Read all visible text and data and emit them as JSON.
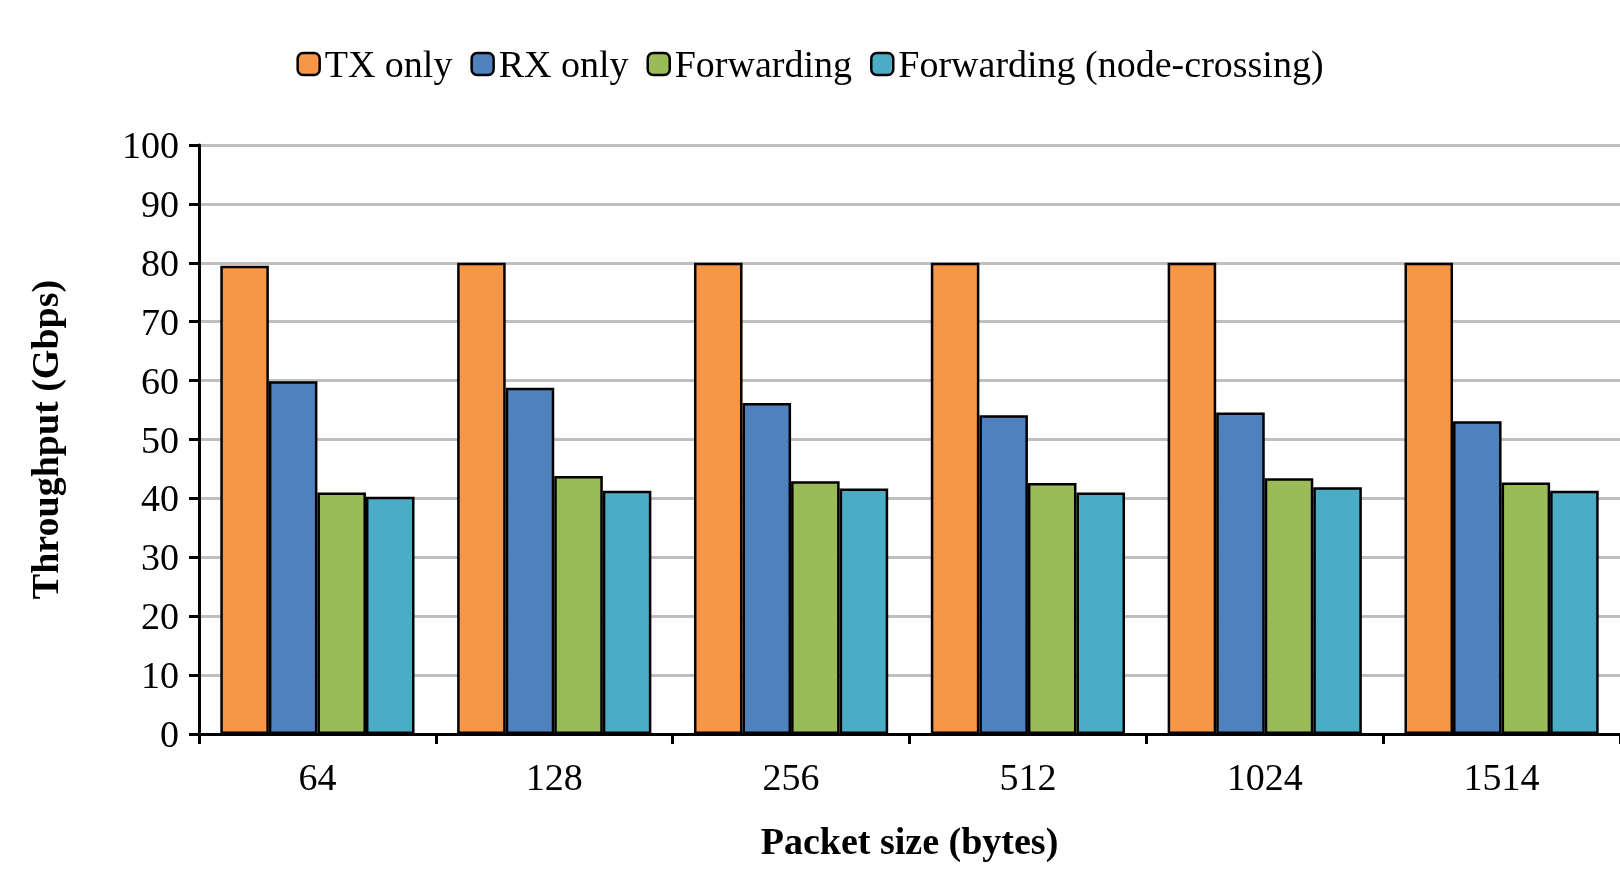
{
  "chart_data": {
    "type": "bar",
    "xlabel": "Packet size (bytes)",
    "ylabel": "Throughput (Gbps)",
    "categories": [
      "64",
      "128",
      "256",
      "512",
      "1024",
      "1514"
    ],
    "series": [
      {
        "name": "TX only",
        "color": "#f79646",
        "values": [
          79.5,
          80,
          80,
          80,
          80,
          80
        ]
      },
      {
        "name": "RX only",
        "color": "#4f81bd",
        "values": [
          59.9,
          58.8,
          56.2,
          54.1,
          54.6,
          53.1
        ]
      },
      {
        "name": "Forwarding",
        "color": "#9bbb59",
        "values": [
          41.0,
          43.8,
          42.9,
          42.6,
          43.4,
          42.7
        ]
      },
      {
        "name": "Forwarding (node-crossing)",
        "color": "#4bacc6",
        "values": [
          40.3,
          41.3,
          41.7,
          41.0,
          41.9,
          41.3
        ]
      }
    ],
    "ylim": [
      0,
      100
    ],
    "yticks": [
      0,
      10,
      20,
      30,
      40,
      50,
      60,
      70,
      80,
      90,
      100
    ],
    "grid": "y",
    "legend": "top"
  }
}
